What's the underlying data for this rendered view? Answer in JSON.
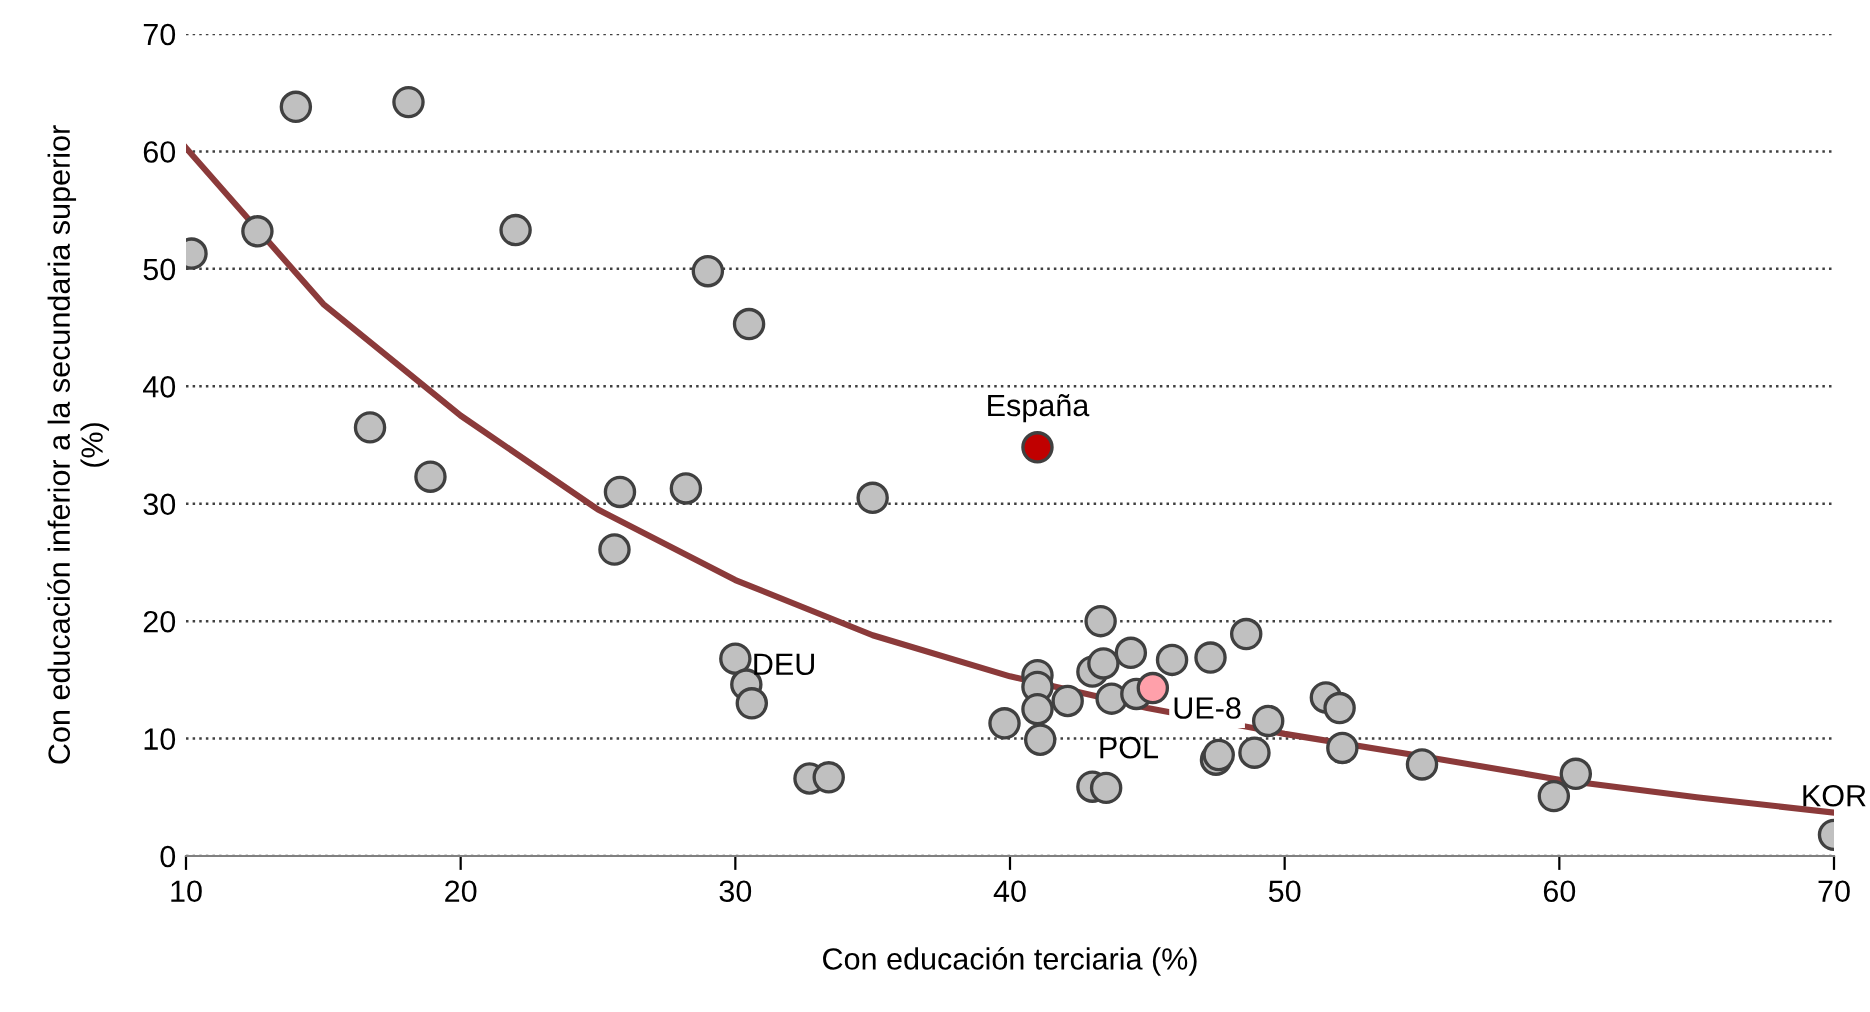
{
  "chart_data": {
    "type": "scatter",
    "xlabel": "Con educación terciaria (%)",
    "ylabel": "Con educación inferior a la secundaria superior\n(%)",
    "xlim": [
      10,
      70
    ],
    "xticks": [
      10,
      20,
      30,
      40,
      50,
      60,
      70
    ],
    "ylim": [
      0,
      70
    ],
    "yticks": [
      0,
      10,
      20,
      30,
      40,
      50,
      60,
      70
    ],
    "grid": "y",
    "legend": false,
    "marker": "circle",
    "series": [
      {
        "color": "#c0c0c0",
        "x": [
          10.2,
          12.6,
          14.0,
          18.1,
          22.0,
          16.7,
          18.9,
          29.0,
          30.5,
          25.8,
          28.2,
          25.6,
          35.0,
          30.0,
          30.4,
          30.6,
          32.7,
          33.4,
          39.8,
          41.0,
          41.0,
          41.0,
          41.1,
          42.1,
          43.0,
          43.3,
          43.4,
          43.7,
          44.4,
          44.6,
          43.0,
          43.5,
          45.9,
          47.3,
          47.5,
          47.6,
          48.6,
          48.9,
          49.4,
          51.5,
          52.0,
          52.1,
          55.0,
          59.8,
          60.6,
          70.0
        ],
        "values": [
          51.3,
          53.2,
          63.8,
          64.2,
          53.3,
          36.5,
          32.3,
          49.8,
          45.3,
          31.0,
          31.3,
          26.1,
          30.5,
          16.8,
          14.6,
          13.0,
          6.6,
          6.7,
          11.3,
          15.4,
          14.4,
          12.5,
          9.9,
          13.2,
          15.7,
          20.0,
          16.4,
          13.4,
          17.3,
          13.8,
          5.9,
          5.8,
          16.7,
          16.9,
          8.2,
          8.6,
          18.9,
          8.8,
          11.5,
          13.5,
          12.6,
          9.2,
          7.8,
          5.1,
          7.0,
          1.8
        ]
      },
      {
        "name": "España",
        "color": "#c00000",
        "x": [
          41.0
        ],
        "values": [
          34.8
        ]
      },
      {
        "name": "UE-8",
        "color": "#ffa0aa",
        "x": [
          45.2
        ],
        "values": [
          14.3
        ]
      },
      {
        "type": "line",
        "color": "#8b3a3a",
        "marker": "none",
        "x": [
          10,
          15,
          20,
          25,
          30,
          35,
          40,
          45,
          50,
          55,
          60,
          65,
          70
        ],
        "values": [
          60.3,
          47,
          37.5,
          29.5,
          23.5,
          18.8,
          15.3,
          12.6,
          10.4,
          8.5,
          6.5,
          5,
          3.7
        ]
      }
    ],
    "annotations": [
      {
        "text": "DEU",
        "x": 30.6,
        "y": 13.0
      },
      {
        "text": "POL",
        "x": 43.2,
        "y": 5.9
      },
      {
        "text": "KOR",
        "x": 70.0,
        "y": 1.8
      }
    ]
  }
}
